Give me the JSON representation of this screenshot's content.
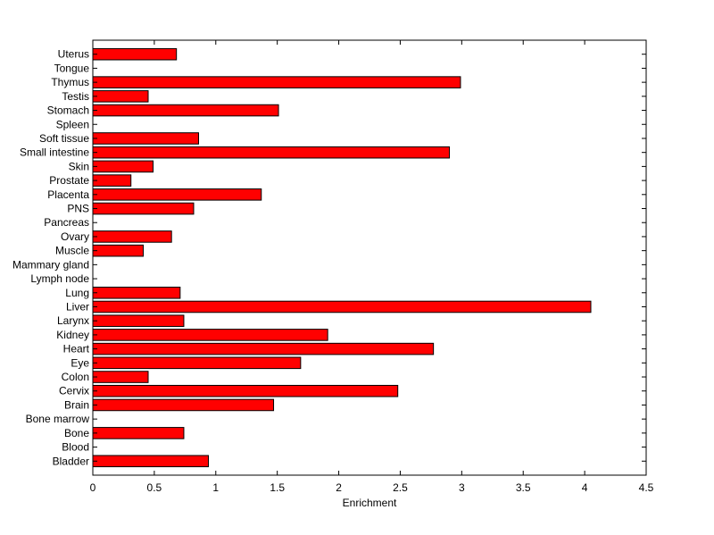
{
  "colors": {
    "bar_fill": "#ff0000",
    "bar_stroke": "#000000",
    "axis": "#000000",
    "background": "#ffffff"
  },
  "chart_data": {
    "type": "bar",
    "orientation": "horizontal",
    "title": "",
    "xlabel": "Enrichment",
    "ylabel": "",
    "xlim": [
      0,
      4.5
    ],
    "xticks": [
      "0",
      "0.5",
      "1",
      "1.5",
      "2",
      "2.5",
      "3",
      "3.5",
      "4",
      "4.5"
    ],
    "grid": false,
    "legend": "none",
    "categories": [
      "Bladder",
      "Blood",
      "Bone",
      "Bone marrow",
      "Brain",
      "Cervix",
      "Colon",
      "Eye",
      "Heart",
      "Kidney",
      "Larynx",
      "Liver",
      "Lung",
      "Lymph node",
      "Mammary gland",
      "Muscle",
      "Ovary",
      "Pancreas",
      "PNS",
      "Placenta",
      "Prostate",
      "Skin",
      "Small intestine",
      "Soft tissue",
      "Spleen",
      "Stomach",
      "Testis",
      "Thymus",
      "Tongue",
      "Uterus"
    ],
    "values": [
      0.94,
      0,
      0.74,
      0,
      1.47,
      2.48,
      0.45,
      1.69,
      2.77,
      1.91,
      0.74,
      4.05,
      0.71,
      0,
      0,
      0.41,
      0.64,
      0,
      0.82,
      1.37,
      0.31,
      0.49,
      2.9,
      0.86,
      0,
      1.51,
      0.45,
      2.99,
      0,
      0.68
    ]
  }
}
